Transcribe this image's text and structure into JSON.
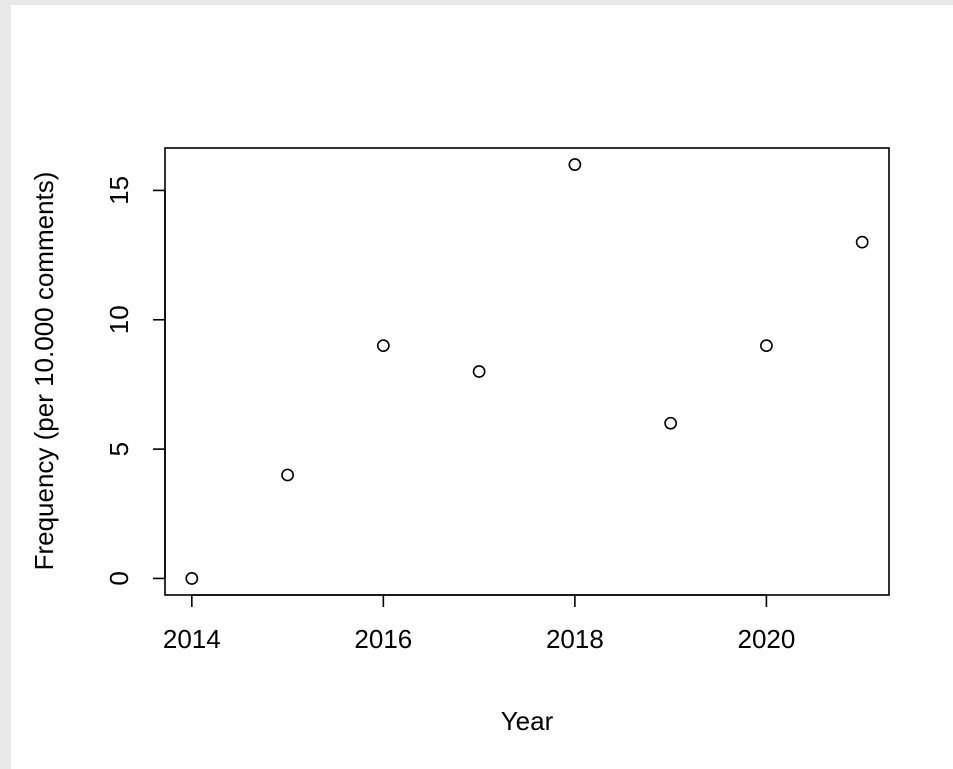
{
  "chart_data": {
    "type": "scatter",
    "title": "",
    "xlabel": "Year",
    "ylabel": "Frequency (per 10.000 comments)",
    "x": [
      2014,
      2015,
      2016,
      2017,
      2018,
      2019,
      2020,
      2021
    ],
    "y": [
      0,
      4,
      9,
      8,
      16,
      6,
      9,
      13
    ],
    "xlim": [
      2013.72,
      2021.28
    ],
    "ylim": [
      -0.64,
      16.64
    ],
    "xticks": [
      2014,
      2016,
      2018,
      2020
    ],
    "xtick_labels": [
      "2014",
      "2016",
      "2018",
      "2020"
    ],
    "yticks": [
      0,
      5,
      10,
      15
    ],
    "ytick_labels": [
      "0",
      "5",
      "10",
      "15"
    ],
    "marker": "open-circle",
    "grid": false,
    "legend": "none",
    "colors": {
      "ink": "#000000",
      "background": "#ffffff",
      "page_background": "#e9e9e9"
    }
  }
}
